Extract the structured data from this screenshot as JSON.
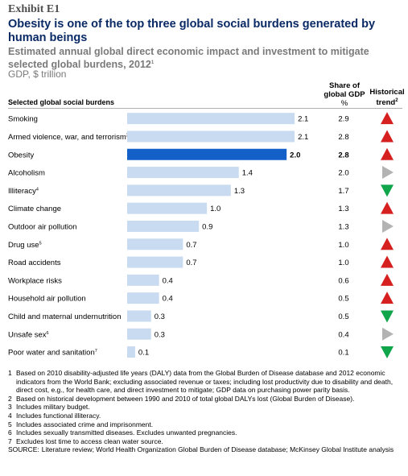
{
  "exhibit": "Exhibit E1",
  "title": "Obesity is one of the top three global social burdens generated by human beings",
  "subtitle": "Estimated annual global direct economic impact and investment to mitigate selected global burdens, 2012",
  "subtitle_note": "1",
  "unit": "GDP, $ trillion",
  "share_header": "Share of global GDP",
  "share_unit": "%",
  "trend_header": "Historical trend",
  "trend_note": "2",
  "category_header": "Selected global social burdens",
  "colors": {
    "bar": "#c9dbf1",
    "highlight_bar": "#1360c8",
    "up": "#d62020",
    "flat": "#b3b3b3",
    "down": "#0fa54a"
  },
  "chart_data": {
    "type": "bar",
    "orientation": "horizontal",
    "title": "Obesity is one of the top three global social burdens generated by human beings",
    "xlabel": "GDP, $ trillion",
    "xlim": [
      0,
      2.2
    ],
    "highlight": "Obesity",
    "categories": [
      {
        "label": "Smoking",
        "note": "",
        "value": 2.1,
        "value_label": "2.1",
        "share": "2.9",
        "trend": "up"
      },
      {
        "label": "Armed violence, war, and terrorism",
        "note": "3",
        "value": 2.1,
        "value_label": "2.1",
        "share": "2.8",
        "trend": "up"
      },
      {
        "label": "Obesity",
        "note": "",
        "value": 2.0,
        "value_label": "2.0",
        "share": "2.8",
        "trend": "up"
      },
      {
        "label": "Alcoholism",
        "note": "",
        "value": 1.4,
        "value_label": "1.4",
        "share": "2.0",
        "trend": "flat"
      },
      {
        "label": "Illiteracy",
        "note": "4",
        "value": 1.3,
        "value_label": "1.3",
        "share": "1.7",
        "trend": "down"
      },
      {
        "label": "Climate change",
        "note": "",
        "value": 1.0,
        "value_label": "1.0",
        "share": "1.3",
        "trend": "up"
      },
      {
        "label": "Outdoor air pollution",
        "note": "",
        "value": 0.9,
        "value_label": "0.9",
        "share": "1.3",
        "trend": "flat"
      },
      {
        "label": "Drug use",
        "note": "5",
        "value": 0.7,
        "value_label": "0.7",
        "share": "1.0",
        "trend": "up"
      },
      {
        "label": "Road accidents",
        "note": "",
        "value": 0.7,
        "value_label": "0.7",
        "share": "1.0",
        "trend": "up"
      },
      {
        "label": "Workplace risks",
        "note": "",
        "value": 0.4,
        "value_label": "0.4",
        "share": "0.6",
        "trend": "up"
      },
      {
        "label": "Household air pollution",
        "note": "",
        "value": 0.4,
        "value_label": "0.4",
        "share": "0.5",
        "trend": "up"
      },
      {
        "label": "Child and maternal undernutrition",
        "note": "",
        "value": 0.3,
        "value_label": "0.3",
        "share": "0.5",
        "trend": "down"
      },
      {
        "label": "Unsafe sex",
        "note": "6",
        "value": 0.3,
        "value_label": "0.3",
        "share": "0.4",
        "trend": "flat"
      },
      {
        "label": "Poor water and sanitation",
        "note": "7",
        "value": 0.1,
        "value_label": "0.1",
        "share": "0.1",
        "trend": "down"
      }
    ]
  },
  "footnotes": [
    {
      "num": "1",
      "text": "Based on 2010 disability-adjusted life years (DALY) data from the Global Burden of Disease database and 2012 economic indicators from the World Bank; excluding associated revenue or taxes; including lost productivity due to disability and death, direct cost, e.g., for health care, and direct investment to mitigate; GDP data on purchasing power parity basis."
    },
    {
      "num": "2",
      "text": "Based on historical development between 1990 and 2010 of total global DALYs lost (Global Burden of Disease)."
    },
    {
      "num": "3",
      "text": "Includes military budget."
    },
    {
      "num": "4",
      "text": "Includes functional illiteracy."
    },
    {
      "num": "5",
      "text": "Includes associated crime and imprisonment."
    },
    {
      "num": "6",
      "text": "Includes sexually transmitted diseases. Excludes unwanted pregnancies."
    },
    {
      "num": "7",
      "text": "Excludes lost time to access clean water source."
    }
  ],
  "source_label": "SOURCE:",
  "source_text": "Literature review; World Health Organization Global Burden of Disease database; McKinsey Global Institute analysis"
}
